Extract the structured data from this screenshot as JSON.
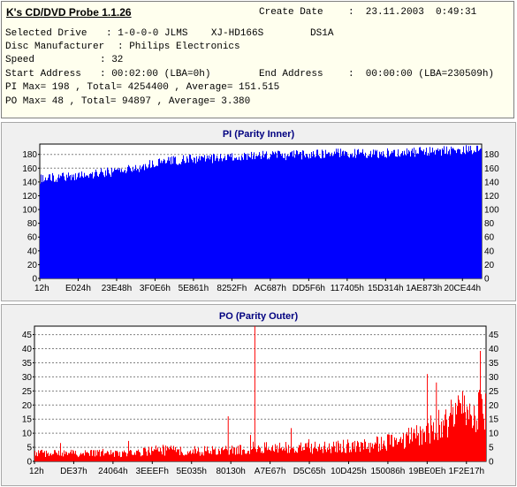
{
  "header": {
    "app_title": "K's CD/DVD Probe 1.1.26",
    "create_date_label": "Create Date",
    "create_date_value": ":  23.11.2003  0:49:31",
    "selected_drive_label": "Selected Drive",
    "selected_drive_value": ": 1-0-0-0 JLMS    XJ-HD166S        DS1A",
    "manufacturer_label": "Disc Manufacturer",
    "manufacturer_value": ": Philips Electronics",
    "speed_label": "Speed",
    "speed_value": ": 32",
    "start_address_label": "Start Address",
    "start_address_value": ": 00:02:00 (LBA=0h)",
    "end_address_label": "End Address",
    "end_address_value": ":  00:00:00 (LBA=230509h)",
    "pi_summary": "PI Max= 198 , Total= 4254400 , Average= 151.515",
    "po_summary": "PO Max= 48 , Total= 94897 , Average= 3.380"
  },
  "chart_data": [
    {
      "type": "area",
      "title": "PI (Parity Inner)",
      "color": "#0000ff",
      "ylim": [
        0,
        195
      ],
      "yticks": [
        0,
        20,
        40,
        60,
        80,
        100,
        120,
        140,
        160,
        180
      ],
      "xlim_hex": [
        "12h",
        "230509h"
      ],
      "xtick_labels": [
        "12h",
        "E024h",
        "23E48h",
        "3F0E6h",
        "5E861h",
        "8252Fh",
        "AC687h",
        "DD5F6h",
        "117405h",
        "15D314h",
        "1AE873h",
        "20CE44h"
      ],
      "grid": true,
      "envelope": [
        145,
        148,
        150,
        152,
        155,
        158,
        162,
        168,
        172,
        174,
        175,
        176,
        178,
        179,
        180,
        180,
        181,
        182,
        184,
        183,
        182,
        183,
        184,
        185,
        186,
        187,
        188,
        187
      ]
    },
    {
      "type": "area",
      "title": "PO (Parity Outer)",
      "color": "#ff0000",
      "ylim": [
        0,
        48
      ],
      "yticks": [
        0,
        5,
        10,
        15,
        20,
        25,
        30,
        35,
        40,
        45
      ],
      "xtick_labels": [
        "12h",
        "DE37h",
        "24064h",
        "3EEEFh",
        "5E035h",
        "80130h",
        "A7E67h",
        "D5C65h",
        "10D425h",
        "150086h",
        "19BE0Eh",
        "1F2E17h"
      ],
      "grid": true,
      "envelope": [
        3,
        3,
        3,
        3,
        3,
        3,
        3,
        4,
        4,
        4,
        4,
        4,
        4,
        5,
        5,
        5,
        5,
        5,
        5,
        6,
        6,
        7,
        8,
        10,
        13,
        16,
        19,
        20
      ]
    }
  ]
}
